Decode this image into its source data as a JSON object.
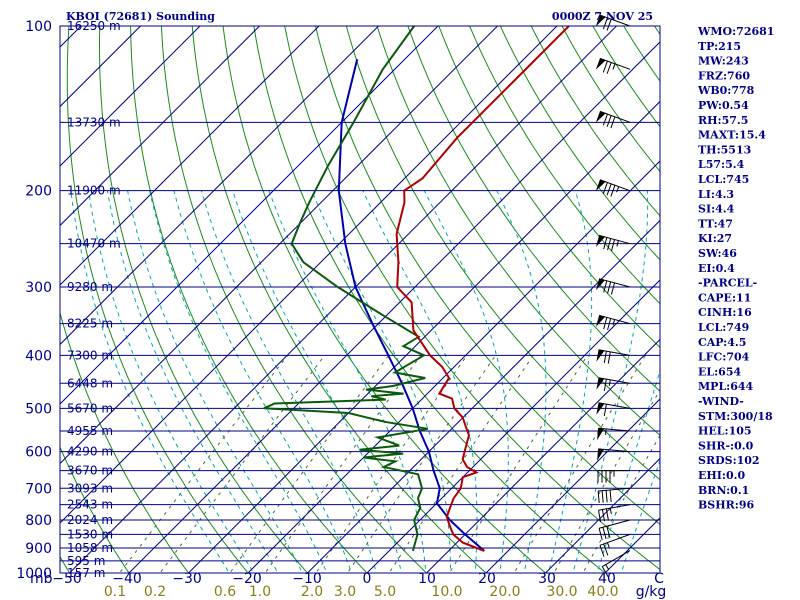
{
  "header": {
    "station": "KBOI (72681) Sounding",
    "time": "0000Z  7 NOV 25"
  },
  "indices": [
    "WMO:72681",
    "TP:215",
    "MW:243",
    "FRZ:760",
    "WB0:778",
    "PW:0.54",
    "RH:57.5",
    "MAXT:15.4",
    "TH:5513",
    "L57:5.4",
    "LCL:745",
    "LI:4.3",
    "SI:4.4",
    "TT:47",
    "KI:27",
    "SW:46",
    "EI:0.4",
    "-PARCEL-",
    "CAPE:11",
    "CINH:16",
    "LCL:749",
    "CAP:4.5",
    "LFC:704",
    "EL:654",
    "MPL:644",
    "-WIND-",
    "STM:300/18",
    "HEL:105",
    "SHR-:0.0",
    "SRDS:102",
    "EHI:0.0",
    "BRN:0.1",
    "BSHR:96"
  ],
  "colors": {
    "frame": "#00008b",
    "isobar": "#00008b",
    "isotherm": "#00008b",
    "dry_adiabat": "#1a8c1a",
    "moist_adiabat": "#00aaaa",
    "mixing_ratio": "#4a6b3a",
    "temperature": "#b00000",
    "dewpoint": "#0b5a0b",
    "parcel": "#0000b0",
    "mr_label": "#8b7d1a"
  },
  "chart_data": {
    "type": "skew-t",
    "pressure_unit": "mb",
    "mixing_ratio_unit": "g/kg",
    "pressure_levels": [
      100,
      200,
      300,
      400,
      500,
      600,
      700,
      800,
      900,
      1000
    ],
    "temperature_ticks": [
      -50,
      -40,
      -30,
      -20,
      -10,
      0,
      10,
      20,
      30,
      40
    ],
    "mixing_ratio_labels": [
      "0.1",
      "0.2",
      "0.6",
      "1.0",
      "2.0",
      "3.0",
      "5.0",
      "10.0",
      "20.0",
      "30.0",
      "40.0"
    ],
    "mixing_ratio_values": [
      0.1,
      0.2,
      0.6,
      1.0,
      2.0,
      3.0,
      5.0,
      10.0,
      20.0,
      30.0,
      40.0
    ],
    "height_levels": [
      {
        "p": 100,
        "label": "16250 m"
      },
      {
        "p": 150,
        "label": "13730 m"
      },
      {
        "p": 200,
        "label": "11900 m"
      },
      {
        "p": 250,
        "label": "10470 m"
      },
      {
        "p": 300,
        "label": "9280 m"
      },
      {
        "p": 350,
        "label": "8225 m"
      },
      {
        "p": 400,
        "label": "7300 m"
      },
      {
        "p": 450,
        "label": "6448 m"
      },
      {
        "p": 500,
        "label": "5670 m"
      },
      {
        "p": 550,
        "label": "4955 m"
      },
      {
        "p": 600,
        "label": "4290 m"
      },
      {
        "p": 650,
        "label": "3670 m"
      },
      {
        "p": 700,
        "label": "3093 m"
      },
      {
        "p": 750,
        "label": "2543 m"
      },
      {
        "p": 800,
        "label": "2024 m"
      },
      {
        "p": 850,
        "label": "1530 m"
      },
      {
        "p": 900,
        "label": "1058 m"
      },
      {
        "p": 950,
        "label": "595 m"
      },
      {
        "p": 1000,
        "label": "157 m"
      }
    ],
    "temperature_profile": [
      [
        911,
        16
      ],
      [
        880,
        11
      ],
      [
        850,
        8
      ],
      [
        820,
        6
      ],
      [
        790,
        4
      ],
      [
        760,
        3
      ],
      [
        730,
        2
      ],
      [
        700,
        1.5
      ],
      [
        668,
        0
      ],
      [
        655,
        1.5
      ],
      [
        640,
        -1
      ],
      [
        620,
        -3
      ],
      [
        600,
        -4
      ],
      [
        580,
        -5
      ],
      [
        560,
        -6
      ],
      [
        540,
        -8
      ],
      [
        520,
        -10
      ],
      [
        500,
        -13
      ],
      [
        480,
        -15
      ],
      [
        470,
        -18
      ],
      [
        440,
        -19
      ],
      [
        420,
        -22
      ],
      [
        400,
        -26
      ],
      [
        360,
        -33
      ],
      [
        320,
        -38
      ],
      [
        300,
        -43
      ],
      [
        270,
        -47
      ],
      [
        240,
        -52
      ],
      [
        210,
        -56
      ],
      [
        200,
        -58
      ],
      [
        190,
        -57
      ],
      [
        160,
        -58
      ],
      [
        130,
        -58
      ],
      [
        100,
        -58
      ]
    ],
    "dewpoint_profile": [
      [
        911,
        4
      ],
      [
        880,
        3
      ],
      [
        850,
        2
      ],
      [
        800,
        -1
      ],
      [
        760,
        -2
      ],
      [
        730,
        -4
      ],
      [
        700,
        -5
      ],
      [
        660,
        -8
      ],
      [
        640,
        -15
      ],
      [
        625,
        -14
      ],
      [
        615,
        -20
      ],
      [
        605,
        -14
      ],
      [
        595,
        -22
      ],
      [
        585,
        -16
      ],
      [
        565,
        -21
      ],
      [
        545,
        -14
      ],
      [
        530,
        -22
      ],
      [
        520,
        -26
      ],
      [
        510,
        -30
      ],
      [
        500,
        -45
      ],
      [
        490,
        -44
      ],
      [
        482,
        -26
      ],
      [
        475,
        -29
      ],
      [
        470,
        -24
      ],
      [
        462,
        -31
      ],
      [
        455,
        -27
      ],
      [
        440,
        -23
      ],
      [
        430,
        -29
      ],
      [
        400,
        -27
      ],
      [
        385,
        -32
      ],
      [
        370,
        -31
      ],
      [
        340,
        -40
      ],
      [
        300,
        -53
      ],
      [
        270,
        -63
      ],
      [
        250,
        -68
      ],
      [
        230,
        -70
      ],
      [
        210,
        -72
      ],
      [
        180,
        -75
      ],
      [
        150,
        -78
      ],
      [
        120,
        -82
      ],
      [
        100,
        -84
      ]
    ],
    "parcel_profile": [
      [
        911,
        16
      ],
      [
        850,
        10
      ],
      [
        800,
        5
      ],
      [
        745,
        0
      ],
      [
        700,
        -2
      ],
      [
        650,
        -6
      ],
      [
        600,
        -10
      ],
      [
        550,
        -15
      ],
      [
        500,
        -20
      ],
      [
        450,
        -26
      ],
      [
        400,
        -33
      ],
      [
        350,
        -41
      ],
      [
        300,
        -50
      ],
      [
        250,
        -59
      ],
      [
        200,
        -69
      ],
      [
        150,
        -80
      ],
      [
        115,
        -88
      ]
    ],
    "wind_barbs": [
      {
        "p": 910,
        "dir": 240,
        "spd": 15
      },
      {
        "p": 850,
        "dir": 250,
        "spd": 25
      },
      {
        "p": 800,
        "dir": 255,
        "spd": 30
      },
      {
        "p": 750,
        "dir": 260,
        "spd": 35
      },
      {
        "p": 700,
        "dir": 265,
        "spd": 40
      },
      {
        "p": 650,
        "dir": 270,
        "spd": 45
      },
      {
        "p": 600,
        "dir": 275,
        "spd": 50
      },
      {
        "p": 550,
        "dir": 275,
        "spd": 55
      },
      {
        "p": 500,
        "dir": 280,
        "spd": 60
      },
      {
        "p": 450,
        "dir": 280,
        "spd": 65
      },
      {
        "p": 400,
        "dir": 280,
        "spd": 70
      },
      {
        "p": 350,
        "dir": 285,
        "spd": 75
      },
      {
        "p": 300,
        "dir": 285,
        "spd": 80
      },
      {
        "p": 250,
        "dir": 285,
        "spd": 85
      },
      {
        "p": 200,
        "dir": 290,
        "spd": 85
      },
      {
        "p": 150,
        "dir": 290,
        "spd": 80
      },
      {
        "p": 120,
        "dir": 290,
        "spd": 75
      },
      {
        "p": 100,
        "dir": 290,
        "spd": 70
      }
    ]
  }
}
